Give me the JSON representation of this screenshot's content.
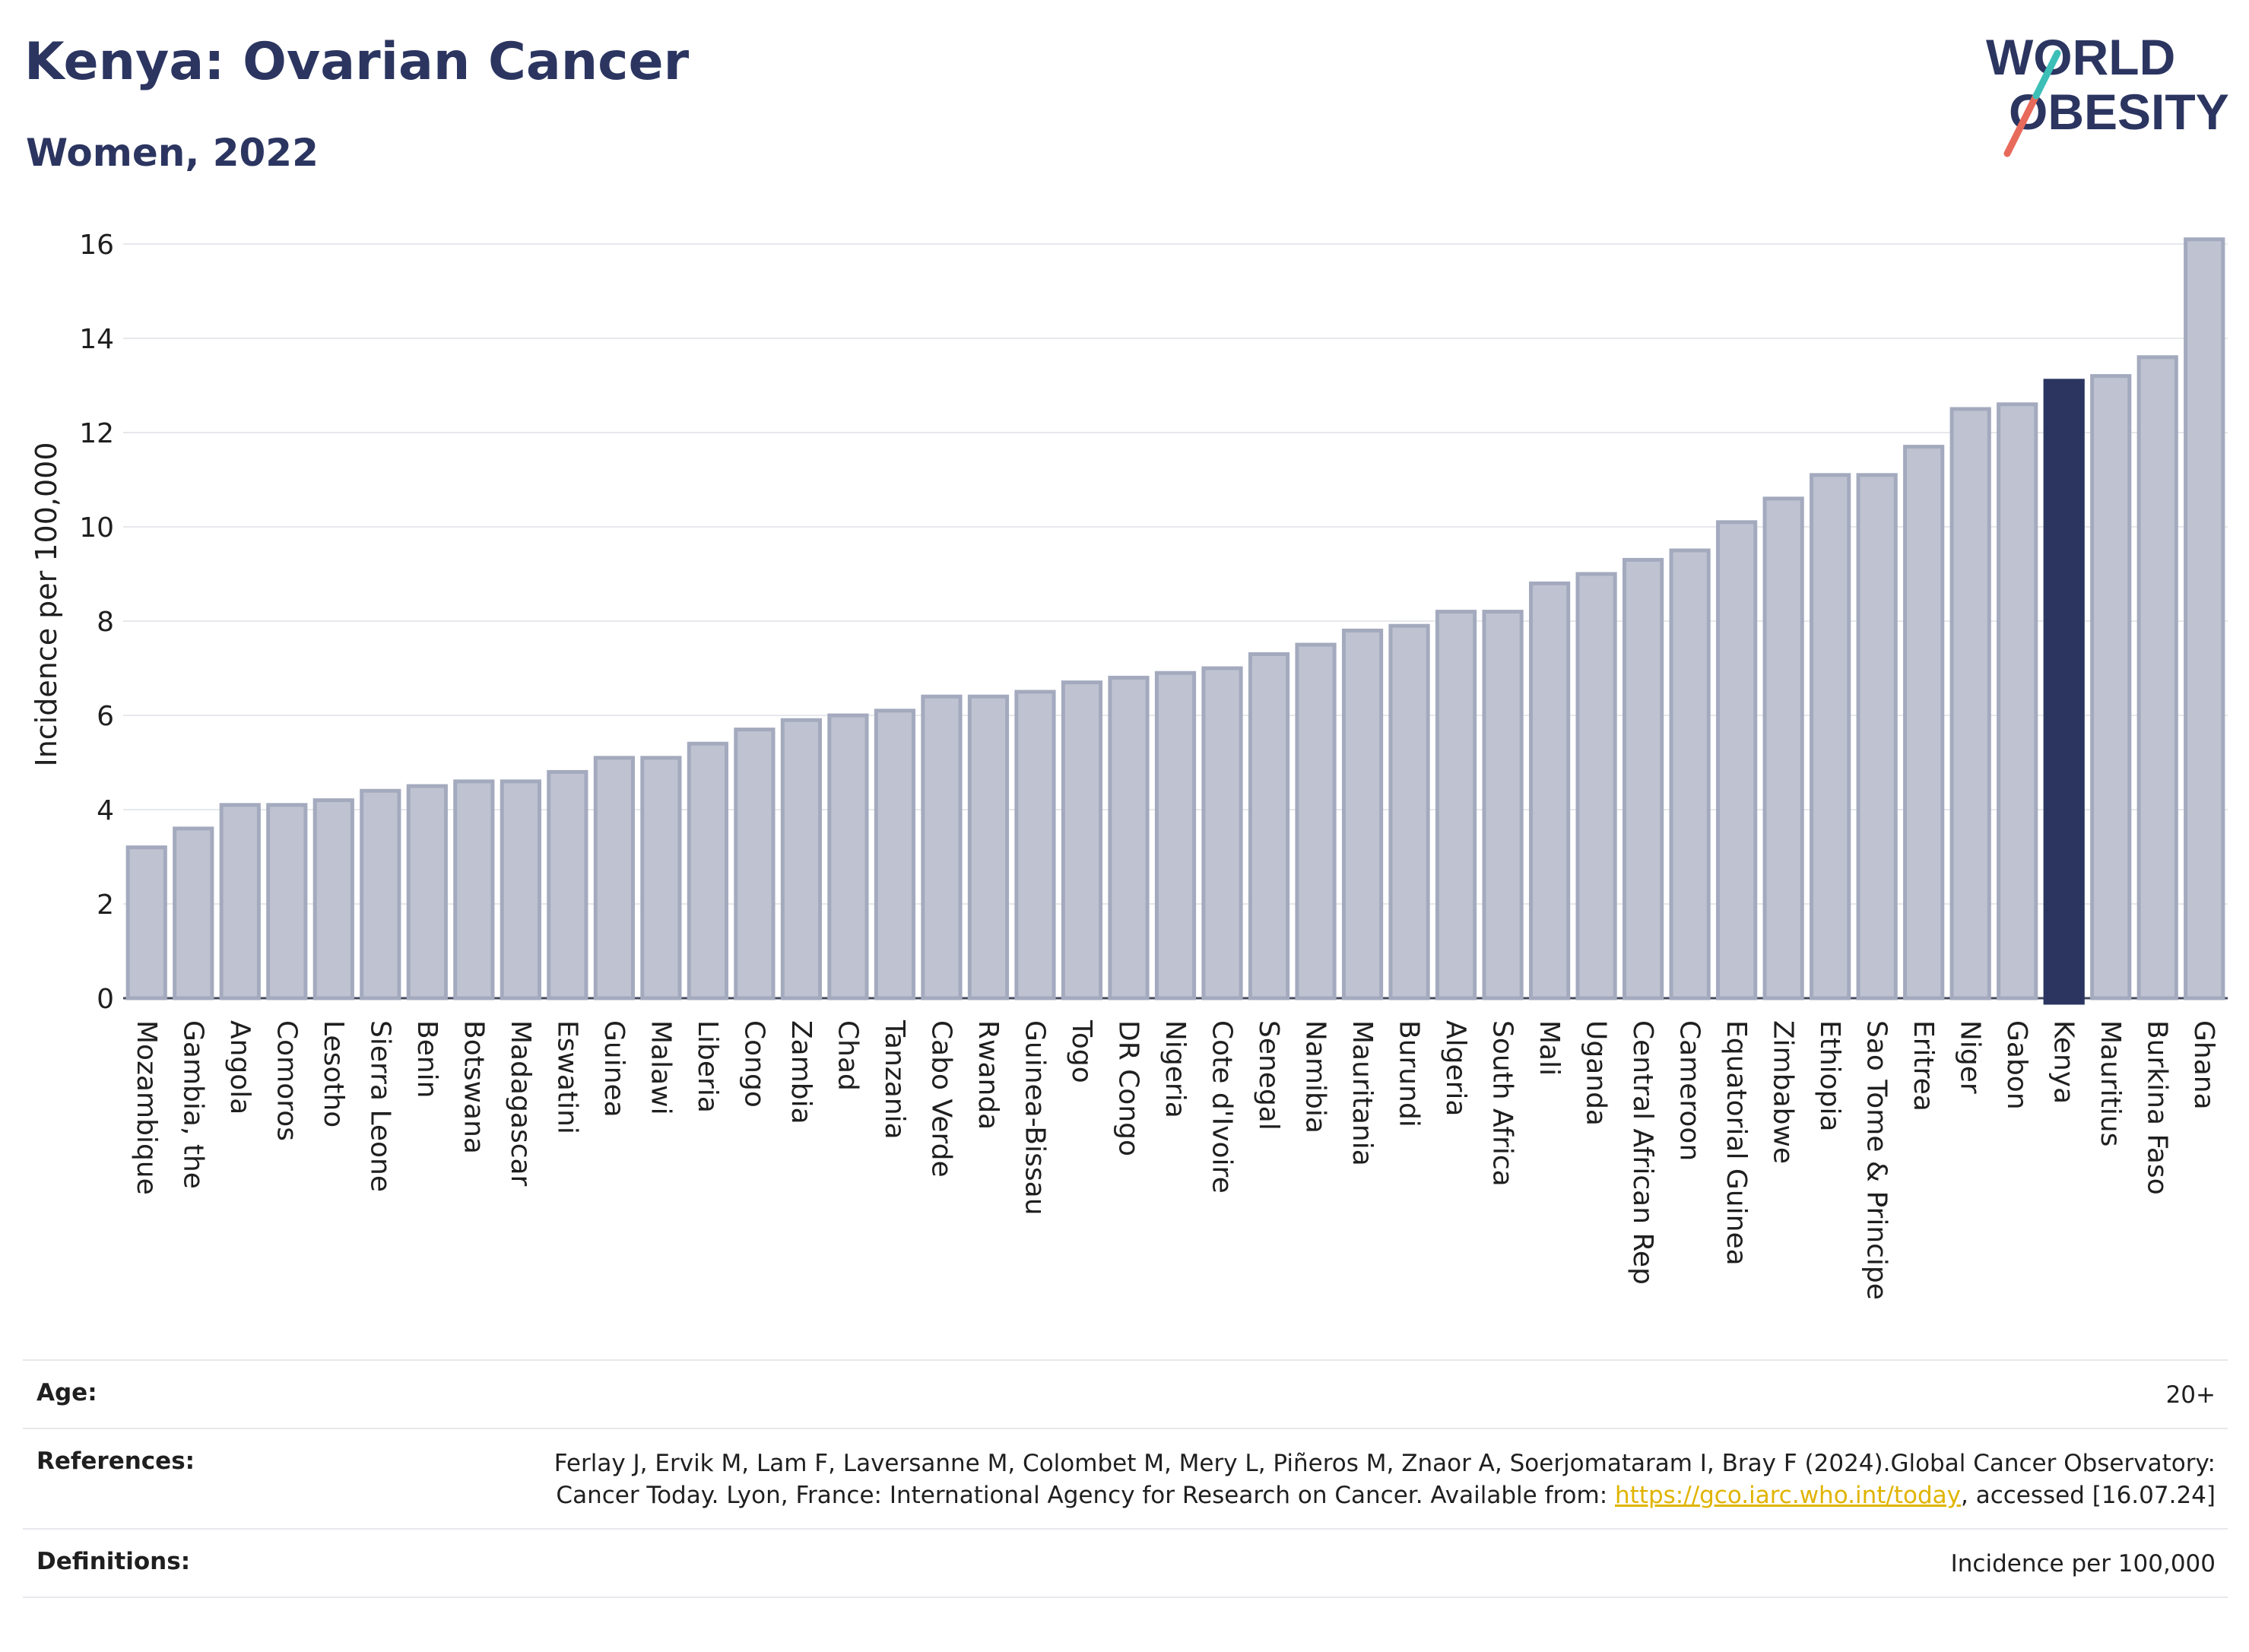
{
  "header": {
    "title": "Kenya: Ovarian Cancer",
    "subtitle": "Women, 2022"
  },
  "logo": {
    "line1": "WORLD",
    "line2": "OBESITY"
  },
  "colors": {
    "bar": "#bfc3d1",
    "bar_border": "#a4aabe",
    "highlight": "#2b3560",
    "title": "#2b3560",
    "link": "#e0b400"
  },
  "chart_data": {
    "type": "bar",
    "ylabel": "Incidence per 100,000",
    "xlabel": "",
    "ylim": [
      0,
      16.5
    ],
    "yticks": [
      0,
      2,
      4,
      6,
      8,
      10,
      12,
      14,
      16
    ],
    "grid": true,
    "highlight": "Kenya",
    "categories": [
      "Mozambique",
      "Gambia, the",
      "Angola",
      "Comoros",
      "Lesotho",
      "Sierra Leone",
      "Benin",
      "Botswana",
      "Madagascar",
      "Eswatini",
      "Guinea",
      "Malawi",
      "Liberia",
      "Congo",
      "Zambia",
      "Chad",
      "Tanzania",
      "Cabo Verde",
      "Rwanda",
      "Guinea-Bissau",
      "Togo",
      "DR Congo",
      "Nigeria",
      "Cote d'Ivoire",
      "Senegal",
      "Namibia",
      "Mauritania",
      "Burundi",
      "Algeria",
      "South Africa",
      "Mali",
      "Uganda",
      "Central African Rep",
      "Cameroon",
      "Equatorial Guinea",
      "Zimbabwe",
      "Ethiopia",
      "Sao Tome & Principe",
      "Eritrea",
      "Niger",
      "Gabon",
      "Kenya",
      "Mauritius",
      "Burkina Faso",
      "Ghana"
    ],
    "values": [
      3.2,
      3.6,
      4.1,
      4.1,
      4.2,
      4.4,
      4.5,
      4.6,
      4.6,
      4.8,
      5.1,
      5.1,
      5.4,
      5.7,
      5.9,
      6.0,
      6.1,
      6.4,
      6.4,
      6.5,
      6.7,
      6.8,
      6.9,
      7.0,
      7.3,
      7.5,
      7.8,
      7.9,
      8.2,
      8.2,
      8.8,
      9.0,
      9.3,
      9.5,
      10.1,
      10.6,
      11.1,
      11.1,
      11.7,
      12.5,
      12.6,
      13.1,
      13.2,
      13.6,
      16.1
    ]
  },
  "footer": {
    "age_label": "Age:",
    "age_value": "20+",
    "references_label": "References:",
    "references_text_1": "Ferlay J, Ervik M, Lam F, Laversanne M, Colombet M, Mery L, Piñeros M, Znaor A, Soerjomataram I, Bray F (2024).Global Cancer Observatory: Cancer Today. Lyon, France: International Agency for Research on Cancer. Available from: ",
    "references_link": "https://gco.iarc.who.int/today",
    "references_text_2": ", accessed [16.07.24]",
    "definitions_label": "Definitions:",
    "definitions_value": "Incidence per 100,000"
  }
}
